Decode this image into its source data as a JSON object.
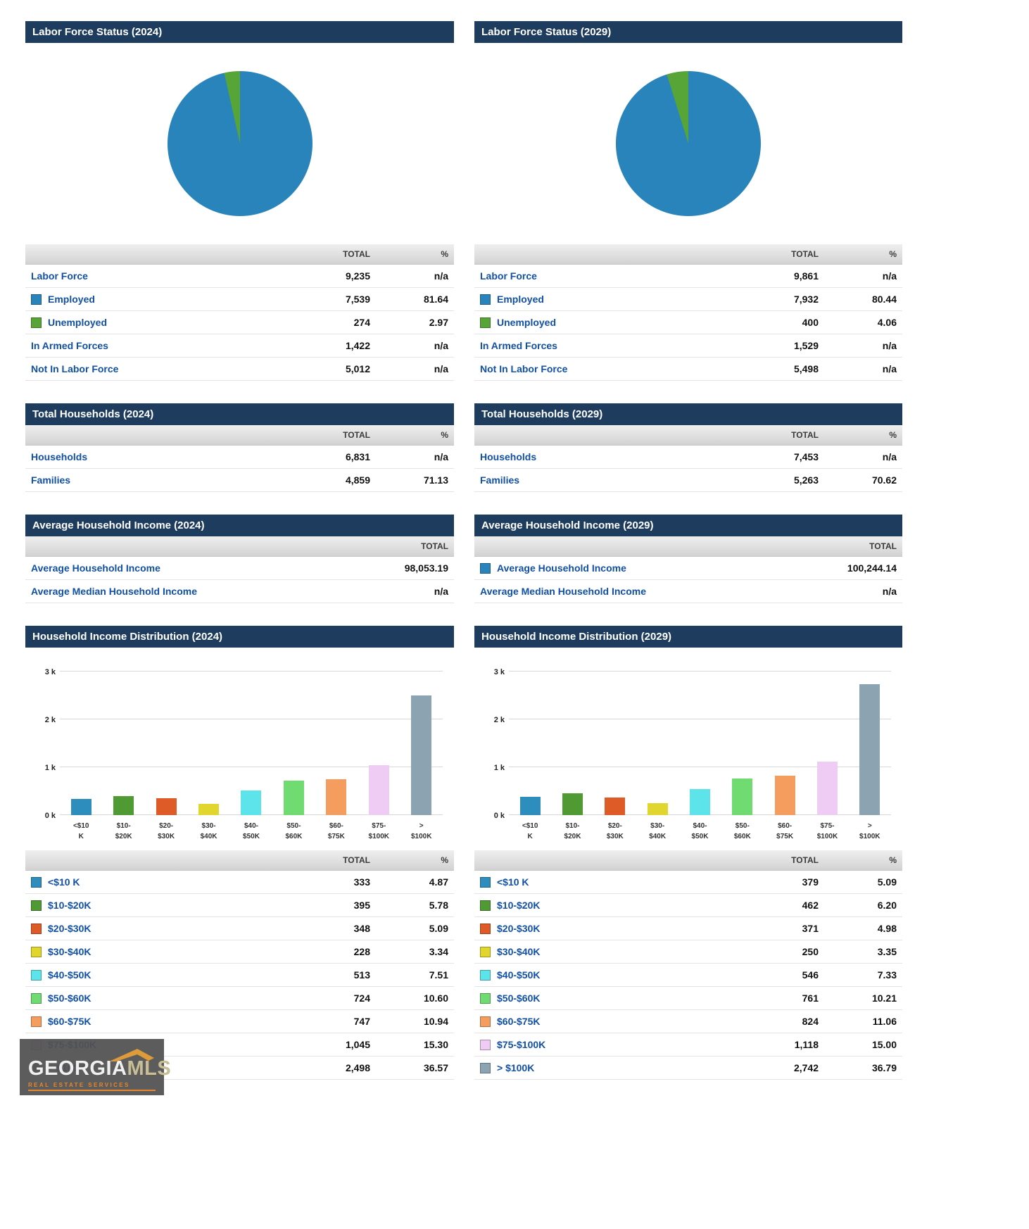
{
  "table_headers": {
    "total": "TOTAL",
    "pct": "%"
  },
  "logo": {
    "name_primary": "GEORGIA",
    "name_secondary": "MLS",
    "tagline": "REAL ESTATE SERVICES"
  },
  "colors": {
    "header_navy": "#1e3c5e",
    "label_blue": "#1150a5",
    "employed_blue": "#2a84bc",
    "unemployed_green": "#57a437"
  },
  "chart_data": [
    {
      "type": "pie",
      "title": "Labor Force Status (2024)",
      "labels": [
        "Employed",
        "Unemployed"
      ],
      "values": [
        7539,
        274
      ],
      "colors": [
        "#2a84bc",
        "#57a437"
      ],
      "legend_position": "table-below"
    },
    {
      "type": "pie",
      "title": "Labor Force Status (2029)",
      "labels": [
        "Employed",
        "Unemployed"
      ],
      "values": [
        7932,
        400
      ],
      "colors": [
        "#2a84bc",
        "#57a437"
      ],
      "legend_position": "table-below"
    },
    {
      "type": "bar",
      "title": "Household Income Distribution (2024)",
      "categories": [
        "<$10\nK",
        "$10-\n$20K",
        "$20-\n$30K",
        "$30-\n$40K",
        "$40-\n$50K",
        "$50-\n$60K",
        "$60-\n$75K",
        "$75-\n$100K",
        ">\n$100K"
      ],
      "values": [
        333,
        395,
        348,
        228,
        513,
        724,
        747,
        1045,
        2498
      ],
      "colors": [
        "#2d8dbd",
        "#4f9a33",
        "#de5a26",
        "#e0d62e",
        "#5ce4ea",
        "#6fdb70",
        "#f59d5e",
        "#eeccf4",
        "#8ca4b2"
      ],
      "xlabel": "",
      "ylabel": "",
      "ylim": [
        0,
        3000
      ],
      "yticks": [
        "0 k",
        "1 k",
        "2 k",
        "3 k"
      ],
      "grid": true
    },
    {
      "type": "bar",
      "title": "Household Income Distribution (2029)",
      "categories": [
        "<$10\nK",
        "$10-\n$20K",
        "$20-\n$30K",
        "$30-\n$40K",
        "$40-\n$50K",
        "$50-\n$60K",
        "$60-\n$75K",
        "$75-\n$100K",
        ">\n$100K"
      ],
      "values": [
        379,
        462,
        371,
        250,
        546,
        761,
        824,
        1118,
        2742
      ],
      "colors": [
        "#2d8dbd",
        "#4f9a33",
        "#de5a26",
        "#e0d62e",
        "#5ce4ea",
        "#6fdb70",
        "#f59d5e",
        "#eeccf4",
        "#8ca4b2"
      ],
      "xlabel": "",
      "ylabel": "",
      "ylim": [
        0,
        3000
      ],
      "yticks": [
        "0 k",
        "1 k",
        "2 k",
        "3 k"
      ],
      "grid": true
    }
  ],
  "panels": [
    {
      "title": "Labor Force Status (2024)",
      "chart_index": 0,
      "has_pct": true,
      "rows": [
        {
          "label": "Labor Force",
          "swatch": null,
          "total": "9,235",
          "pct": "n/a"
        },
        {
          "label": "Employed",
          "swatch": "#2a84bc",
          "total": "7,539",
          "pct": "81.64"
        },
        {
          "label": "Unemployed",
          "swatch": "#57a437",
          "total": "274",
          "pct": "2.97"
        },
        {
          "label": "In Armed Forces",
          "swatch": null,
          "total": "1,422",
          "pct": "n/a"
        },
        {
          "label": "Not In Labor Force",
          "swatch": null,
          "total": "5,012",
          "pct": "n/a"
        }
      ]
    },
    {
      "title": "Labor Force Status (2029)",
      "chart_index": 1,
      "has_pct": true,
      "rows": [
        {
          "label": "Labor Force",
          "swatch": null,
          "total": "9,861",
          "pct": "n/a"
        },
        {
          "label": "Employed",
          "swatch": "#2a84bc",
          "total": "7,932",
          "pct": "80.44"
        },
        {
          "label": "Unemployed",
          "swatch": "#57a437",
          "total": "400",
          "pct": "4.06"
        },
        {
          "label": "In Armed Forces",
          "swatch": null,
          "total": "1,529",
          "pct": "n/a"
        },
        {
          "label": "Not In Labor Force",
          "swatch": null,
          "total": "5,498",
          "pct": "n/a"
        }
      ]
    },
    {
      "title": "Total Households (2024)",
      "chart_index": null,
      "has_pct": true,
      "rows": [
        {
          "label": "Households",
          "swatch": null,
          "total": "6,831",
          "pct": "n/a"
        },
        {
          "label": "Families",
          "swatch": null,
          "total": "4,859",
          "pct": "71.13"
        }
      ]
    },
    {
      "title": "Total Households (2029)",
      "chart_index": null,
      "has_pct": true,
      "rows": [
        {
          "label": "Households",
          "swatch": null,
          "total": "7,453",
          "pct": "n/a"
        },
        {
          "label": "Families",
          "swatch": null,
          "total": "5,263",
          "pct": "70.62"
        }
      ]
    },
    {
      "title": "Average Household Income (2024)",
      "chart_index": null,
      "has_pct": false,
      "rows": [
        {
          "label": "Average Household Income",
          "swatch": null,
          "total": "98,053.19"
        },
        {
          "label": "Average Median Household Income",
          "swatch": null,
          "total": "n/a"
        }
      ]
    },
    {
      "title": "Average Household Income (2029)",
      "chart_index": null,
      "has_pct": false,
      "rows": [
        {
          "label": "Average Household Income",
          "swatch": "#2a84bc",
          "total": "100,244.14"
        },
        {
          "label": "Average Median Household Income",
          "swatch": null,
          "total": "n/a"
        }
      ]
    },
    {
      "title": "Household Income Distribution (2024)",
      "chart_index": 2,
      "has_pct": true,
      "rows": [
        {
          "label": "<$10 K",
          "swatch": "#2d8dbd",
          "total": "333",
          "pct": "4.87"
        },
        {
          "label": "$10-$20K",
          "swatch": "#4f9a33",
          "total": "395",
          "pct": "5.78"
        },
        {
          "label": "$20-$30K",
          "swatch": "#de5a26",
          "total": "348",
          "pct": "5.09"
        },
        {
          "label": "$30-$40K",
          "swatch": "#e0d62e",
          "total": "228",
          "pct": "3.34"
        },
        {
          "label": "$40-$50K",
          "swatch": "#5ce4ea",
          "total": "513",
          "pct": "7.51"
        },
        {
          "label": "$50-$60K",
          "swatch": "#6fdb70",
          "total": "724",
          "pct": "10.60"
        },
        {
          "label": "$60-$75K",
          "swatch": "#f59d5e",
          "total": "747",
          "pct": "10.94"
        },
        {
          "label": "$75-$100K",
          "swatch": "#eeccf4",
          "total": "1,045",
          "pct": "15.30"
        },
        {
          "label": "> $100K",
          "swatch": "#8ca4b2",
          "total": "2,498",
          "pct": "36.57"
        }
      ]
    },
    {
      "title": "Household Income Distribution (2029)",
      "chart_index": 3,
      "has_pct": true,
      "rows": [
        {
          "label": "<$10 K",
          "swatch": "#2d8dbd",
          "total": "379",
          "pct": "5.09"
        },
        {
          "label": "$10-$20K",
          "swatch": "#4f9a33",
          "total": "462",
          "pct": "6.20"
        },
        {
          "label": "$20-$30K",
          "swatch": "#de5a26",
          "total": "371",
          "pct": "4.98"
        },
        {
          "label": "$30-$40K",
          "swatch": "#e0d62e",
          "total": "250",
          "pct": "3.35"
        },
        {
          "label": "$40-$50K",
          "swatch": "#5ce4ea",
          "total": "546",
          "pct": "7.33"
        },
        {
          "label": "$50-$60K",
          "swatch": "#6fdb70",
          "total": "761",
          "pct": "10.21"
        },
        {
          "label": "$60-$75K",
          "swatch": "#f59d5e",
          "total": "824",
          "pct": "11.06"
        },
        {
          "label": "$75-$100K",
          "swatch": "#eeccf4",
          "total": "1,118",
          "pct": "15.00"
        },
        {
          "label": "> $100K",
          "swatch": "#8ca4b2",
          "total": "2,742",
          "pct": "36.79"
        }
      ]
    }
  ]
}
